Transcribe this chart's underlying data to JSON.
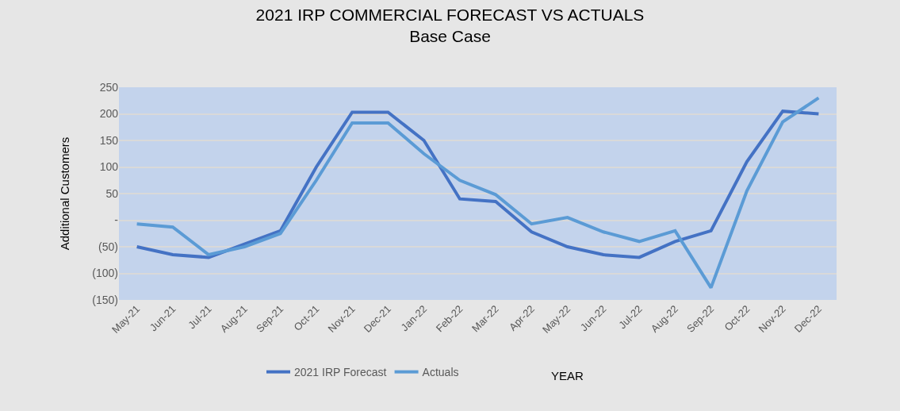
{
  "chart_data": {
    "type": "line",
    "title": "2021 IRP COMMERCIAL FORECAST VS ACTUALS",
    "subtitle": "Base Case",
    "xlabel": "YEAR",
    "ylabel": "Additional Customers",
    "categories": [
      "May-21",
      "Jun-21",
      "Jul-21",
      "Aug-21",
      "Sep-21",
      "Oct-21",
      "Nov-21",
      "Dec-21",
      "Jan-22",
      "Feb-22",
      "Mar-22",
      "Apr-22",
      "May-22",
      "Jun-22",
      "Jul-22",
      "Aug-22",
      "Sep-22",
      "Oct-22",
      "Nov-22",
      "Dec-22"
    ],
    "series": [
      {
        "name": "2021 IRP Forecast",
        "color": "#4472c4",
        "values": [
          -50,
          -65,
          -70,
          -45,
          -20,
          100,
          203,
          203,
          150,
          40,
          35,
          -22,
          -50,
          -65,
          -70,
          -40,
          -20,
          110,
          205,
          200
        ]
      },
      {
        "name": "Actuals",
        "color": "#5b9bd5",
        "values": [
          -7,
          -13,
          -65,
          -50,
          -25,
          75,
          183,
          183,
          125,
          75,
          48,
          -7,
          5,
          -22,
          -40,
          -20,
          -127,
          55,
          185,
          230
        ]
      }
    ],
    "ylim": [
      -150,
      250
    ],
    "yticks": [
      {
        "value": -150,
        "label": "(150)"
      },
      {
        "value": -100,
        "label": "(100)"
      },
      {
        "value": -50,
        "label": "(50)"
      },
      {
        "value": 0,
        "label": "-"
      },
      50,
      100,
      150,
      200,
      250
    ],
    "grid": "y",
    "legend": "bottom",
    "marker": "none",
    "line_style": "solid"
  }
}
